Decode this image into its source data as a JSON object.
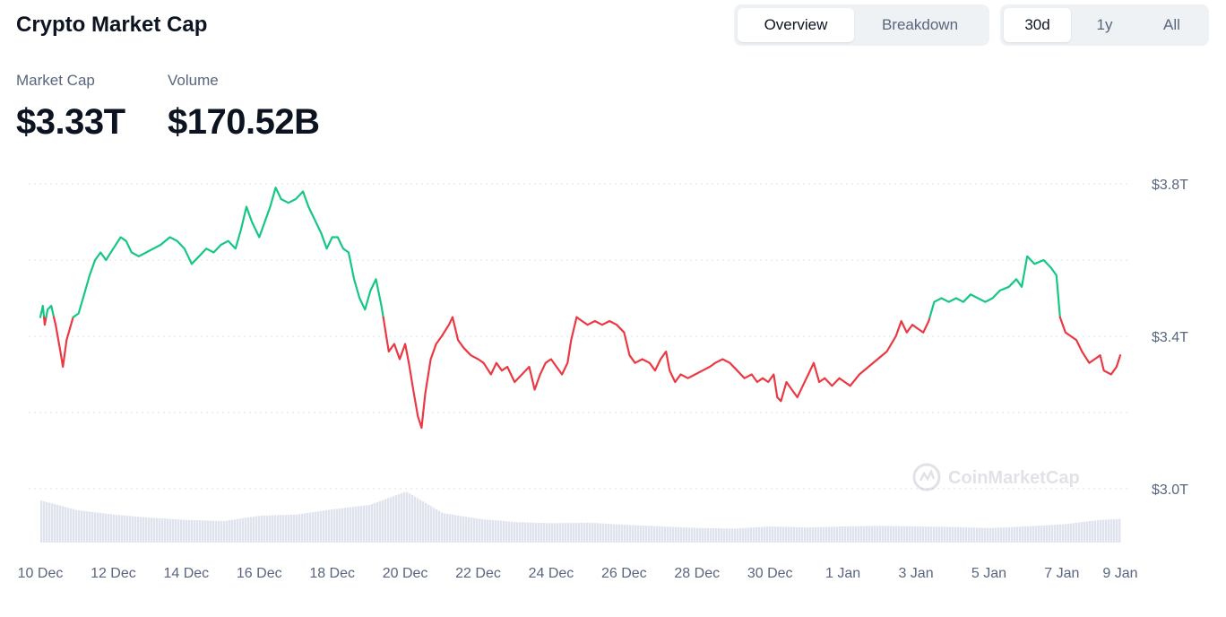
{
  "header": {
    "title": "Crypto Market Cap",
    "view_tabs": [
      {
        "label": "Overview",
        "active": true
      },
      {
        "label": "Breakdown",
        "active": false
      }
    ],
    "range_tabs": [
      {
        "label": "30d",
        "active": true
      },
      {
        "label": "1y",
        "active": false
      },
      {
        "label": "All",
        "active": false
      }
    ]
  },
  "metrics": {
    "market_cap": {
      "label": "Market Cap",
      "value": "$3.33T"
    },
    "volume": {
      "label": "Volume",
      "value": "$170.52B"
    }
  },
  "watermark": "CoinMarketCap",
  "colors": {
    "up": "#16c784",
    "down": "#ea3943",
    "volume": "#dfe3ee",
    "grid": "#dde2e9",
    "text": "#58667e"
  },
  "chart_data": {
    "type": "line",
    "title": "",
    "xlabel": "",
    "ylabel": "",
    "ylim": [
      2.9,
      3.8
    ],
    "yticks": [
      {
        "value": 3.8,
        "label": "$3.8T"
      },
      {
        "value": 3.4,
        "label": "$3.4T"
      },
      {
        "value": 3.0,
        "label": "$3.0T"
      }
    ],
    "xtick_labels": [
      "10 Dec",
      "12 Dec",
      "14 Dec",
      "16 Dec",
      "18 Dec",
      "20 Dec",
      "22 Dec",
      "24 Dec",
      "26 Dec",
      "28 Dec",
      "30 Dec",
      "1 Jan",
      "3 Jan",
      "5 Jan",
      "7 Jan",
      "9 Jan"
    ],
    "baseline": 3.45,
    "grid": true,
    "series": [
      {
        "values": [
          [
            0.0,
            3.45
          ],
          [
            0.07,
            3.48
          ],
          [
            0.12,
            3.43
          ],
          [
            0.2,
            3.47
          ],
          [
            0.3,
            3.48
          ],
          [
            0.42,
            3.43
          ],
          [
            0.55,
            3.36
          ],
          [
            0.62,
            3.32
          ],
          [
            0.72,
            3.39
          ],
          [
            0.9,
            3.45
          ],
          [
            1.05,
            3.46
          ],
          [
            1.2,
            3.51
          ],
          [
            1.35,
            3.56
          ],
          [
            1.5,
            3.6
          ],
          [
            1.65,
            3.62
          ],
          [
            1.8,
            3.6
          ],
          [
            2.0,
            3.63
          ],
          [
            2.2,
            3.66
          ],
          [
            2.35,
            3.65
          ],
          [
            2.5,
            3.62
          ],
          [
            2.7,
            3.61
          ],
          [
            2.9,
            3.62
          ],
          [
            3.1,
            3.63
          ],
          [
            3.3,
            3.64
          ],
          [
            3.55,
            3.66
          ],
          [
            3.75,
            3.65
          ],
          [
            3.95,
            3.63
          ],
          [
            4.15,
            3.59
          ],
          [
            4.35,
            3.61
          ],
          [
            4.55,
            3.63
          ],
          [
            4.75,
            3.62
          ],
          [
            4.95,
            3.64
          ],
          [
            5.15,
            3.65
          ],
          [
            5.35,
            3.63
          ],
          [
            5.5,
            3.68
          ],
          [
            5.65,
            3.74
          ],
          [
            5.8,
            3.7
          ],
          [
            6.0,
            3.66
          ],
          [
            6.15,
            3.7
          ],
          [
            6.3,
            3.74
          ],
          [
            6.45,
            3.79
          ],
          [
            6.6,
            3.76
          ],
          [
            6.8,
            3.75
          ],
          [
            7.0,
            3.76
          ],
          [
            7.2,
            3.78
          ],
          [
            7.35,
            3.74
          ],
          [
            7.55,
            3.7
          ],
          [
            7.7,
            3.67
          ],
          [
            7.85,
            3.63
          ],
          [
            8.0,
            3.66
          ],
          [
            8.15,
            3.66
          ],
          [
            8.3,
            3.63
          ],
          [
            8.45,
            3.62
          ],
          [
            8.6,
            3.55
          ],
          [
            8.75,
            3.5
          ],
          [
            8.9,
            3.47
          ],
          [
            9.05,
            3.52
          ],
          [
            9.2,
            3.55
          ],
          [
            9.35,
            3.48
          ],
          [
            9.45,
            3.42
          ],
          [
            9.55,
            3.36
          ],
          [
            9.7,
            3.38
          ],
          [
            9.85,
            3.34
          ],
          [
            10.0,
            3.38
          ],
          [
            10.1,
            3.33
          ],
          [
            10.22,
            3.26
          ],
          [
            10.35,
            3.19
          ],
          [
            10.45,
            3.16
          ],
          [
            10.55,
            3.25
          ],
          [
            10.7,
            3.34
          ],
          [
            10.85,
            3.38
          ],
          [
            11.0,
            3.4
          ],
          [
            11.2,
            3.43
          ],
          [
            11.3,
            3.45
          ],
          [
            11.45,
            3.39
          ],
          [
            11.6,
            3.37
          ],
          [
            11.8,
            3.35
          ],
          [
            12.0,
            3.34
          ],
          [
            12.15,
            3.33
          ],
          [
            12.35,
            3.3
          ],
          [
            12.5,
            3.33
          ],
          [
            12.65,
            3.31
          ],
          [
            12.8,
            3.32
          ],
          [
            13.0,
            3.28
          ],
          [
            13.2,
            3.3
          ],
          [
            13.4,
            3.32
          ],
          [
            13.55,
            3.26
          ],
          [
            13.7,
            3.3
          ],
          [
            13.85,
            3.33
          ],
          [
            14.0,
            3.34
          ],
          [
            14.15,
            3.32
          ],
          [
            14.3,
            3.3
          ],
          [
            14.45,
            3.33
          ],
          [
            14.55,
            3.39
          ],
          [
            14.7,
            3.45
          ],
          [
            14.85,
            3.44
          ],
          [
            15.0,
            3.43
          ],
          [
            15.2,
            3.44
          ],
          [
            15.4,
            3.43
          ],
          [
            15.6,
            3.44
          ],
          [
            15.8,
            3.43
          ],
          [
            16.0,
            3.41
          ],
          [
            16.15,
            3.35
          ],
          [
            16.3,
            3.33
          ],
          [
            16.5,
            3.34
          ],
          [
            16.7,
            3.33
          ],
          [
            16.85,
            3.31
          ],
          [
            17.0,
            3.34
          ],
          [
            17.15,
            3.36
          ],
          [
            17.25,
            3.31
          ],
          [
            17.4,
            3.28
          ],
          [
            17.55,
            3.3
          ],
          [
            17.75,
            3.29
          ],
          [
            17.95,
            3.3
          ],
          [
            18.15,
            3.31
          ],
          [
            18.35,
            3.32
          ],
          [
            18.5,
            3.33
          ],
          [
            18.7,
            3.34
          ],
          [
            18.9,
            3.33
          ],
          [
            19.1,
            3.31
          ],
          [
            19.3,
            3.29
          ],
          [
            19.5,
            3.3
          ],
          [
            19.65,
            3.28
          ],
          [
            19.8,
            3.29
          ],
          [
            19.95,
            3.28
          ],
          [
            20.1,
            3.3
          ],
          [
            20.2,
            3.24
          ],
          [
            20.3,
            3.23
          ],
          [
            20.45,
            3.28
          ],
          [
            20.6,
            3.26
          ],
          [
            20.75,
            3.24
          ],
          [
            20.9,
            3.27
          ],
          [
            21.05,
            3.3
          ],
          [
            21.2,
            3.33
          ],
          [
            21.35,
            3.28
          ],
          [
            21.5,
            3.29
          ],
          [
            21.7,
            3.27
          ],
          [
            21.9,
            3.29
          ],
          [
            22.05,
            3.28
          ],
          [
            22.2,
            3.27
          ],
          [
            22.45,
            3.3
          ],
          [
            22.7,
            3.32
          ],
          [
            22.95,
            3.34
          ],
          [
            23.2,
            3.36
          ],
          [
            23.45,
            3.4
          ],
          [
            23.6,
            3.44
          ],
          [
            23.75,
            3.41
          ],
          [
            23.9,
            3.43
          ],
          [
            24.05,
            3.42
          ],
          [
            24.2,
            3.41
          ],
          [
            24.35,
            3.44
          ],
          [
            24.5,
            3.49
          ],
          [
            24.7,
            3.5
          ],
          [
            24.9,
            3.49
          ],
          [
            25.1,
            3.5
          ],
          [
            25.3,
            3.49
          ],
          [
            25.5,
            3.51
          ],
          [
            25.7,
            3.5
          ],
          [
            25.9,
            3.49
          ],
          [
            26.1,
            3.5
          ],
          [
            26.3,
            3.52
          ],
          [
            26.55,
            3.53
          ],
          [
            26.75,
            3.55
          ],
          [
            26.9,
            3.53
          ],
          [
            27.05,
            3.61
          ],
          [
            27.25,
            3.59
          ],
          [
            27.5,
            3.6
          ],
          [
            27.7,
            3.58
          ],
          [
            27.85,
            3.56
          ],
          [
            27.95,
            3.45
          ],
          [
            28.1,
            3.41
          ],
          [
            28.25,
            3.4
          ],
          [
            28.4,
            3.39
          ],
          [
            28.55,
            3.36
          ],
          [
            28.75,
            3.33
          ],
          [
            28.9,
            3.34
          ],
          [
            29.05,
            3.35
          ],
          [
            29.15,
            3.31
          ],
          [
            29.35,
            3.3
          ],
          [
            29.5,
            3.32
          ],
          [
            29.6,
            3.35
          ]
        ]
      }
    ],
    "volume": {
      "x": [
        0,
        1,
        2,
        3,
        4,
        5,
        6,
        7,
        8,
        9,
        10,
        11,
        12,
        13,
        14,
        15,
        16,
        17,
        18,
        19,
        20,
        21,
        22,
        23,
        24,
        25,
        26,
        27,
        28,
        29,
        29.6
      ],
      "values": [
        0.78,
        0.6,
        0.52,
        0.46,
        0.42,
        0.4,
        0.5,
        0.52,
        0.62,
        0.7,
        0.95,
        0.55,
        0.44,
        0.38,
        0.36,
        0.37,
        0.33,
        0.3,
        0.27,
        0.26,
        0.3,
        0.28,
        0.3,
        0.31,
        0.3,
        0.29,
        0.27,
        0.3,
        0.34,
        0.42,
        0.44
      ]
    }
  }
}
